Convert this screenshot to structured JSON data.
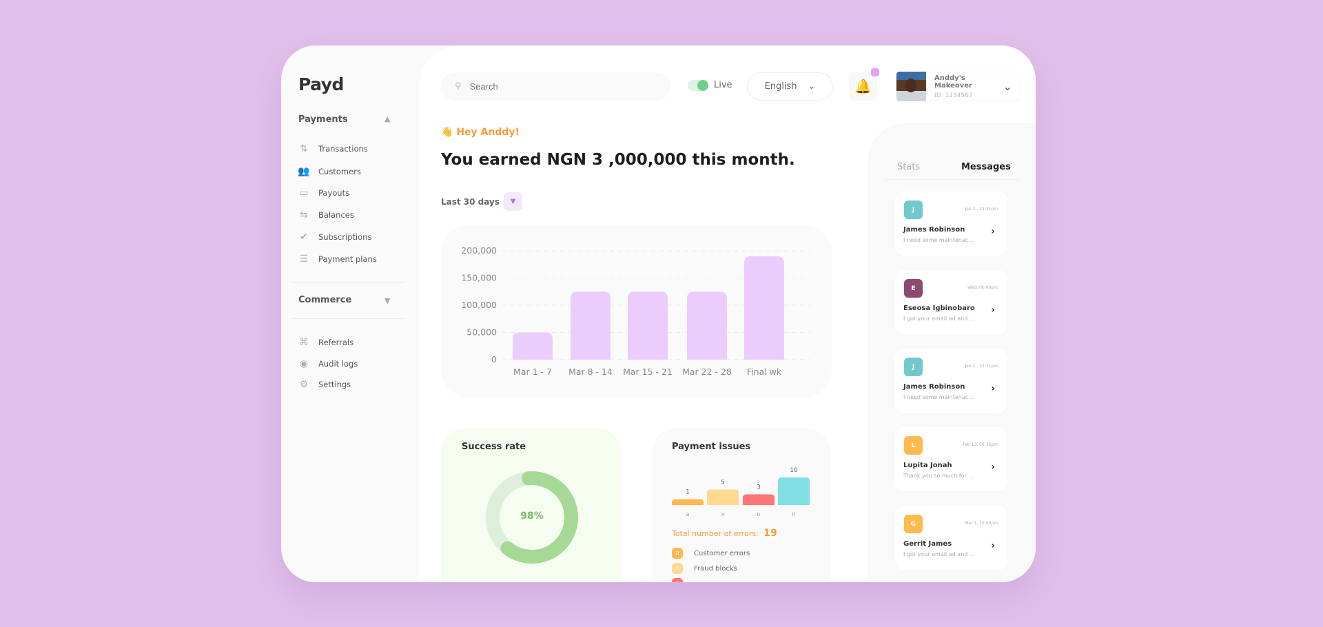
{
  "app": {
    "logo": "Payd"
  },
  "sidebar": {
    "payments_label": "Payments",
    "payments_items": [
      {
        "label": "Transactions",
        "icon": "transactions-icon"
      },
      {
        "label": "Customers",
        "icon": "customers-icon"
      },
      {
        "label": "Payouts",
        "icon": "card-icon"
      },
      {
        "label": "Balances",
        "icon": "balances-icon"
      },
      {
        "label": "Subscriptions",
        "icon": "check-circle-icon"
      },
      {
        "label": "Payment plans",
        "icon": "list-icon"
      }
    ],
    "commerce_label": "Commerce",
    "other_items": [
      {
        "label": "Referrals",
        "icon": "network-icon"
      },
      {
        "label": "Audit logs",
        "icon": "eye-icon"
      },
      {
        "label": "Settings",
        "icon": "gear-icon"
      }
    ]
  },
  "header": {
    "search_placeholder": "Search",
    "live_label": "Live",
    "live_on": true,
    "language": "English",
    "profile_name": "Anddy's Makeover",
    "profile_id": "ID: 1234567",
    "notification_dot_color": "#e6a1f7"
  },
  "greeting": {
    "hey": "Hey Anddy!",
    "emoji": "👋",
    "headline": "You earned NGN 3 ,000,000 this month.",
    "range": "Last 30 days"
  },
  "chart_data": [
    {
      "type": "bar",
      "categories": [
        "Mar 1 - 7",
        "Mar 8 - 14",
        "Mar 15 - 21",
        "Mar 22 - 28",
        "Final wk"
      ],
      "values": [
        50000,
        125000,
        125000,
        125000,
        190000
      ],
      "yticks": [
        "200,000",
        "150,000",
        "100,000",
        "50,000",
        "0"
      ],
      "ylim": [
        0,
        200000
      ],
      "grid": true,
      "color": "#ebcdfd"
    },
    {
      "type": "pie",
      "title": "Success rate",
      "values": [
        98
      ],
      "label": "98%",
      "color": "#a6d996",
      "track": "#ddeedb"
    },
    {
      "type": "bar",
      "title": "Payment issues",
      "categories": [
        "a",
        "x",
        "o",
        "n"
      ],
      "values": [
        1,
        5,
        3,
        10
      ],
      "colors": [
        "#ffb84d",
        "#ffd98f",
        "#ff7474",
        "#80dfe4"
      ]
    }
  ],
  "issues": {
    "total_label": "Total number of errors:",
    "total": "19",
    "legend": [
      {
        "key": "a",
        "label": "Customer errors",
        "color": "#ffb84d"
      },
      {
        "key": "x",
        "label": "Fraud blocks",
        "color": "#ffd98f"
      },
      {
        "key": "o",
        "label": "",
        "color": "#ff7474"
      }
    ]
  },
  "panel": {
    "tabs": [
      "Stats",
      "Messages"
    ],
    "active_tab": "Messages",
    "messages": [
      {
        "initial": "J",
        "name": "James Robinson",
        "date": "Jan 2 , 12:31pm",
        "preview": "I need some maintenac...",
        "color": "#72c9cc"
      },
      {
        "initial": "E",
        "name": "Eseosa Igbinobaro",
        "date": "Wed, 06:00pm",
        "preview": "I got your email ad and ...",
        "color": "#8e4a6e"
      },
      {
        "initial": "J",
        "name": "James Robinson",
        "date": "Jan 2 , 12:31pm",
        "preview": "I need some maintenac...",
        "color": "#72c9cc"
      },
      {
        "initial": "L",
        "name": "Lupita Jonah",
        "date": "Feb 13, 06:15pm",
        "preview": "Thank you so much for ...",
        "color": "#ffbb4f"
      },
      {
        "initial": "G",
        "name": "Gerrit James",
        "date": "Mar 1, 10:00pm",
        "preview": "I got your email ad and ...",
        "color": "#ffbb4f"
      }
    ]
  }
}
